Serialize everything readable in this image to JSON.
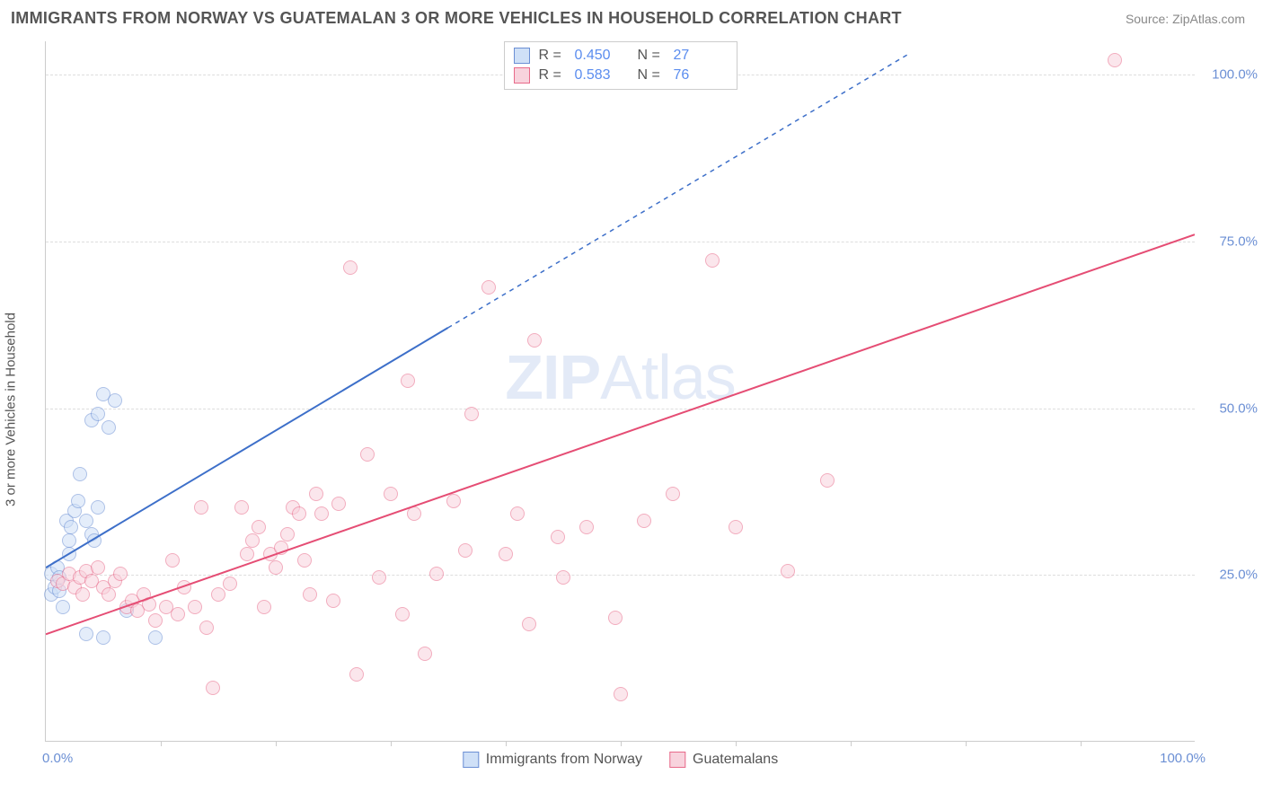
{
  "title": "IMMIGRANTS FROM NORWAY VS GUATEMALAN 3 OR MORE VEHICLES IN HOUSEHOLD CORRELATION CHART",
  "source": "Source: ZipAtlas.com",
  "watermark_a": "ZIP",
  "watermark_b": "Atlas",
  "chart": {
    "type": "scatter",
    "xlim": [
      0,
      100
    ],
    "ylim": [
      0,
      105
    ],
    "ytick_values": [
      25,
      50,
      75,
      100
    ],
    "ytick_labels": [
      "25.0%",
      "50.0%",
      "75.0%",
      "100.0%"
    ],
    "xtick_values": [
      10,
      20,
      30,
      40,
      50,
      60,
      70,
      80,
      90
    ],
    "xtick_label_left": "0.0%",
    "xtick_label_right": "100.0%",
    "ylabel": "3 or more Vehicles in Household",
    "background_color": "#ffffff",
    "grid_color": "#dddddd",
    "axis_color": "#cccccc",
    "label_color": "#6b8fd4"
  },
  "legend_top": [
    {
      "color_fill": "#cfe0f7",
      "color_border": "#6b8fd4",
      "r_label": "R =",
      "r_value": "0.450",
      "n_label": "N =",
      "n_value": "27"
    },
    {
      "color_fill": "#f8d3dd",
      "color_border": "#e86a8a",
      "r_label": "R =",
      "r_value": "0.583",
      "n_label": "N =",
      "n_value": "76"
    }
  ],
  "legend_bottom": [
    {
      "color_fill": "#cfe0f7",
      "color_border": "#6b8fd4",
      "label": "Immigrants from Norway"
    },
    {
      "color_fill": "#f8d3dd",
      "color_border": "#e86a8a",
      "label": "Guatemalans"
    }
  ],
  "series": [
    {
      "name": "norway",
      "color_fill": "#cfe0f7",
      "color_border": "#6b8fd4",
      "trendline": {
        "x1": 0,
        "y1": 26,
        "x2": 35,
        "y2": 62,
        "x2_dash": 75,
        "y2_dash": 103,
        "stroke": "#3d6fc9",
        "width": 2
      },
      "points": [
        [
          0.5,
          25
        ],
        [
          0.5,
          22
        ],
        [
          0.8,
          23
        ],
        [
          1.0,
          26
        ],
        [
          1.2,
          24.5
        ],
        [
          1.2,
          22.5
        ],
        [
          1.5,
          20
        ],
        [
          1.8,
          33
        ],
        [
          2.0,
          30
        ],
        [
          2.2,
          32
        ],
        [
          2.5,
          34.5
        ],
        [
          2.8,
          36
        ],
        [
          2.0,
          28
        ],
        [
          3.0,
          40
        ],
        [
          3.5,
          33
        ],
        [
          4.0,
          31
        ],
        [
          4.2,
          30
        ],
        [
          4.5,
          35
        ],
        [
          4.0,
          48
        ],
        [
          4.5,
          49
        ],
        [
          5.0,
          52
        ],
        [
          5.5,
          47
        ],
        [
          6.0,
          51
        ],
        [
          3.5,
          16
        ],
        [
          5.0,
          15.5
        ],
        [
          7.0,
          19.5
        ],
        [
          9.5,
          15.5
        ]
      ]
    },
    {
      "name": "guatemalans",
      "color_fill": "#f8d3dd",
      "color_border": "#e86a8a",
      "trendline": {
        "x1": 0,
        "y1": 16,
        "x2": 100,
        "y2": 76,
        "stroke": "#e54d74",
        "width": 2
      },
      "points": [
        [
          1.0,
          24
        ],
        [
          1.5,
          23.5
        ],
        [
          2.0,
          25
        ],
        [
          2.5,
          23
        ],
        [
          3.0,
          24.5
        ],
        [
          3.2,
          22
        ],
        [
          3.5,
          25.5
        ],
        [
          4.0,
          24
        ],
        [
          4.5,
          26
        ],
        [
          5.0,
          23
        ],
        [
          5.5,
          22
        ],
        [
          6.0,
          24
        ],
        [
          6.5,
          25
        ],
        [
          7.0,
          20
        ],
        [
          7.5,
          21
        ],
        [
          8.0,
          19.5
        ],
        [
          8.5,
          22
        ],
        [
          9.0,
          20.5
        ],
        [
          9.5,
          18
        ],
        [
          10.5,
          20
        ],
        [
          11.0,
          27
        ],
        [
          11.5,
          19
        ],
        [
          12.0,
          23
        ],
        [
          13.0,
          20
        ],
        [
          13.5,
          35
        ],
        [
          14.0,
          17
        ],
        [
          14.5,
          8
        ],
        [
          15.0,
          22
        ],
        [
          16.0,
          23.5
        ],
        [
          17.0,
          35
        ],
        [
          17.5,
          28
        ],
        [
          18.0,
          30
        ],
        [
          18.5,
          32
        ],
        [
          19.0,
          20
        ],
        [
          19.5,
          28
        ],
        [
          20.0,
          26
        ],
        [
          20.5,
          29
        ],
        [
          21.0,
          31
        ],
        [
          21.5,
          35
        ],
        [
          22.0,
          34
        ],
        [
          22.5,
          27
        ],
        [
          23.0,
          22
        ],
        [
          23.5,
          37
        ],
        [
          24.0,
          34
        ],
        [
          25.0,
          21
        ],
        [
          25.5,
          35.5
        ],
        [
          26.5,
          71
        ],
        [
          27.0,
          10
        ],
        [
          28.0,
          43
        ],
        [
          29.0,
          24.5
        ],
        [
          30.0,
          37
        ],
        [
          31.0,
          19
        ],
        [
          31.5,
          54
        ],
        [
          32.0,
          34
        ],
        [
          33.0,
          13
        ],
        [
          34.0,
          25
        ],
        [
          35.5,
          36
        ],
        [
          36.5,
          28.5
        ],
        [
          37.0,
          49
        ],
        [
          38.5,
          68
        ],
        [
          40.0,
          28
        ],
        [
          41.0,
          34
        ],
        [
          42.5,
          60
        ],
        [
          42.0,
          17.5
        ],
        [
          44.5,
          30.5
        ],
        [
          45.0,
          24.5
        ],
        [
          47.0,
          32
        ],
        [
          49.5,
          18.5
        ],
        [
          50.0,
          7
        ],
        [
          52.0,
          33
        ],
        [
          54.5,
          37
        ],
        [
          58.0,
          72
        ],
        [
          60.0,
          32
        ],
        [
          64.5,
          25.5
        ],
        [
          68.0,
          39
        ],
        [
          93.0,
          102
        ]
      ]
    }
  ]
}
